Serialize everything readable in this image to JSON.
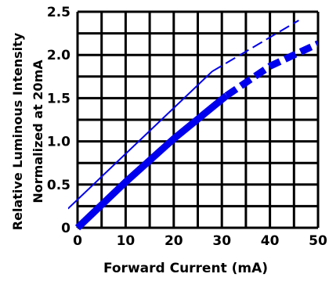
{
  "chart_data": {
    "type": "line",
    "title": "",
    "xlabel": "Forward Current (mA)",
    "ylabel_line1": "Relative Luminous Intensity",
    "ylabel_line2": "Normalized at 20mA",
    "xlim": [
      0,
      50
    ],
    "ylim": [
      0,
      2.5
    ],
    "x_ticks": [
      0,
      10,
      20,
      30,
      40,
      50
    ],
    "x_tick_labels": [
      "0",
      "10",
      "20",
      "30",
      "40",
      "50"
    ],
    "y_ticks": [
      0,
      0.5,
      1.0,
      1.5,
      2.0,
      2.5
    ],
    "y_tick_labels": [
      "0",
      "0.5",
      "1.0",
      "1.5",
      "2.0",
      "2.5"
    ],
    "grid": true,
    "colors": {
      "series": "#0000ee",
      "grid": "#000000"
    },
    "series": [
      {
        "style": "thin",
        "segments": [
          {
            "dash": false,
            "x": [
              -2,
              28
            ],
            "y": [
              0.22,
              1.81
            ]
          },
          {
            "dash": true,
            "x": [
              28,
              46
            ],
            "y": [
              1.81,
              2.4
            ]
          }
        ]
      },
      {
        "style": "thick",
        "segments": [
          {
            "dash": false,
            "x": [
              0,
              10,
              20,
              31
            ],
            "y": [
              0,
              0.53,
              1.03,
              1.53
            ]
          },
          {
            "dash": true,
            "x": [
              31,
              40,
              50
            ],
            "y": [
              1.53,
              1.87,
              2.13
            ]
          }
        ]
      }
    ]
  }
}
